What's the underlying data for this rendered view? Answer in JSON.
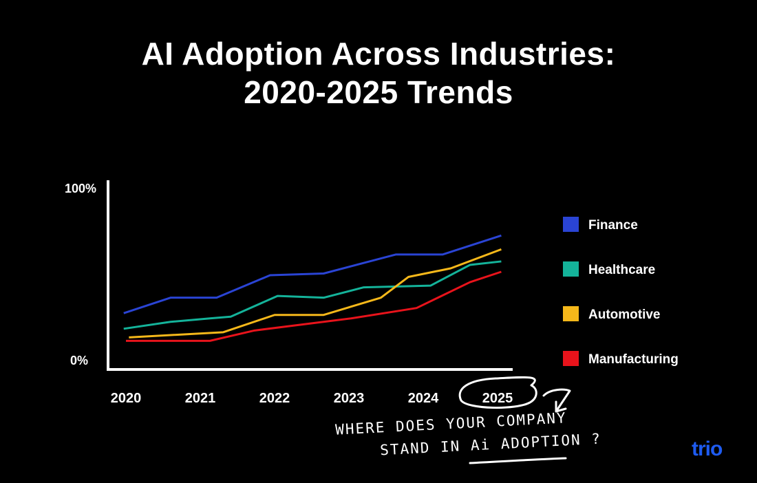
{
  "chart_data": {
    "type": "line",
    "title": [
      "AI Adoption Across Industries:",
      "2020-2025 Trends"
    ],
    "xlabel": "",
    "ylabel": "",
    "x_ticks": [
      "2020",
      "2021",
      "2022",
      "2023",
      "2024",
      "2025"
    ],
    "y_ticks": [
      "0%",
      "100%"
    ],
    "ylim": [
      0,
      100
    ],
    "xlim": [
      2019.8,
      2025.2
    ],
    "grid": false,
    "legend_position": "right",
    "series": [
      {
        "name": "Finance",
        "color": "#2a44d4",
        "x": [
          2019.97,
          2020.6,
          2021.22,
          2021.94,
          2022.66,
          2023.63,
          2024.26,
          2025.05
        ],
        "y": [
          27,
          36,
          36,
          49,
          50,
          61,
          61,
          72
        ]
      },
      {
        "name": "Healthcare",
        "color": "#14b39a",
        "x": [
          2019.97,
          2020.6,
          2021.13,
          2021.41,
          2022.04,
          2022.66,
          2023.2,
          2024.1,
          2024.63,
          2025.05
        ],
        "y": [
          18,
          22,
          24,
          25,
          37,
          36,
          42,
          43,
          55,
          57
        ]
      },
      {
        "name": "Automotive",
        "color": "#f6b81a",
        "x": [
          2020.04,
          2021.31,
          2022.0,
          2022.66,
          2023.43,
          2023.8,
          2024.37,
          2025.05
        ],
        "y": [
          13,
          16,
          26,
          26,
          36,
          48,
          53,
          64
        ]
      },
      {
        "name": "Manufacturing",
        "color": "#e8131b",
        "x": [
          2020.0,
          2021.13,
          2021.73,
          2023.03,
          2023.91,
          2024.63,
          2025.05
        ],
        "y": [
          11,
          11,
          17,
          24,
          30,
          45,
          51
        ]
      }
    ]
  },
  "annotation": {
    "line1": "WHERE DOES YOUR COMPANY",
    "line2": "STAND IN Ai ADOPTION ?"
  },
  "logo": "trio"
}
